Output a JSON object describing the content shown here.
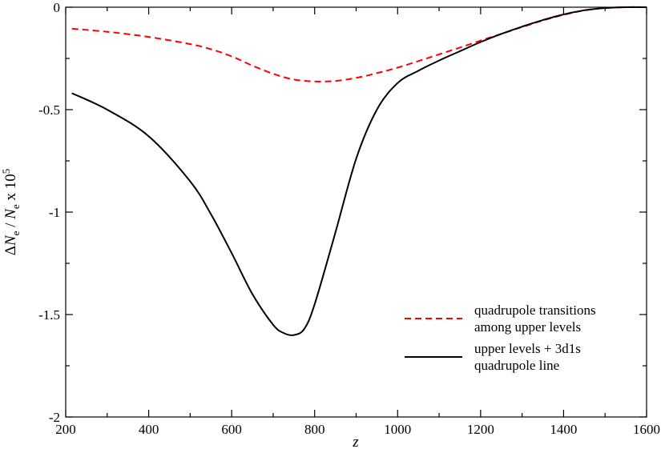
{
  "chart_data": {
    "type": "line",
    "title": "",
    "xlabel": "z",
    "ylabel": {
      "delta": "Δ",
      "n1": "N",
      "sub1": "e",
      "slash": " / ",
      "n2": "N",
      "sub2": "e",
      "times": " x 10",
      "exp": "5"
    },
    "xlim": [
      200,
      1600
    ],
    "ylim": [
      -2,
      0
    ],
    "xticks": [
      200,
      400,
      600,
      800,
      1000,
      1200,
      1400,
      1600
    ],
    "xtick_labels": [
      "200",
      "400",
      "600",
      "800",
      "1000",
      "1200",
      "1400",
      "1600"
    ],
    "yticks": [
      0,
      -0.5,
      -1,
      -1.5,
      -2
    ],
    "ytick_labels": [
      "0",
      "-0.5",
      "-1",
      "-1.5",
      "-2"
    ],
    "legend_position": "bottom-right",
    "series": [
      {
        "name": "quadrupole transitions among upper levels",
        "legend_lines": [
          "quadrupole transitions",
          "among upper levels"
        ],
        "color": "#ff0000",
        "style": "dashed",
        "x": [
          215,
          300,
          400,
          500,
          550,
          600,
          650,
          700,
          750,
          800,
          850,
          900,
          950,
          1000,
          1050,
          1100,
          1150,
          1200,
          1250,
          1300,
          1350,
          1400,
          1450,
          1500,
          1550,
          1600
        ],
        "y": [
          -0.105,
          -0.12,
          -0.145,
          -0.18,
          -0.205,
          -0.24,
          -0.285,
          -0.325,
          -0.353,
          -0.362,
          -0.36,
          -0.345,
          -0.322,
          -0.295,
          -0.263,
          -0.23,
          -0.197,
          -0.163,
          -0.13,
          -0.097,
          -0.065,
          -0.037,
          -0.016,
          -0.004,
          0.0,
          0.0
        ]
      },
      {
        "name": "upper levels + 3d1s quadrupole line",
        "legend_lines": [
          "upper levels + 3d1s",
          "quadrupole line"
        ],
        "color": "#000000",
        "style": "solid",
        "x": [
          215,
          300,
          400,
          500,
          550,
          600,
          650,
          700,
          725,
          750,
          775,
          800,
          850,
          900,
          950,
          1000,
          1050,
          1100,
          1150,
          1200,
          1250,
          1300,
          1350,
          1400,
          1450,
          1500,
          1550,
          1600
        ],
        "y": [
          -0.42,
          -0.5,
          -0.63,
          -0.85,
          -1.01,
          -1.2,
          -1.4,
          -1.55,
          -1.59,
          -1.6,
          -1.57,
          -1.45,
          -1.1,
          -0.74,
          -0.5,
          -0.37,
          -0.31,
          -0.26,
          -0.215,
          -0.17,
          -0.13,
          -0.095,
          -0.063,
          -0.035,
          -0.015,
          -0.004,
          0.0,
          0.0
        ]
      }
    ]
  }
}
